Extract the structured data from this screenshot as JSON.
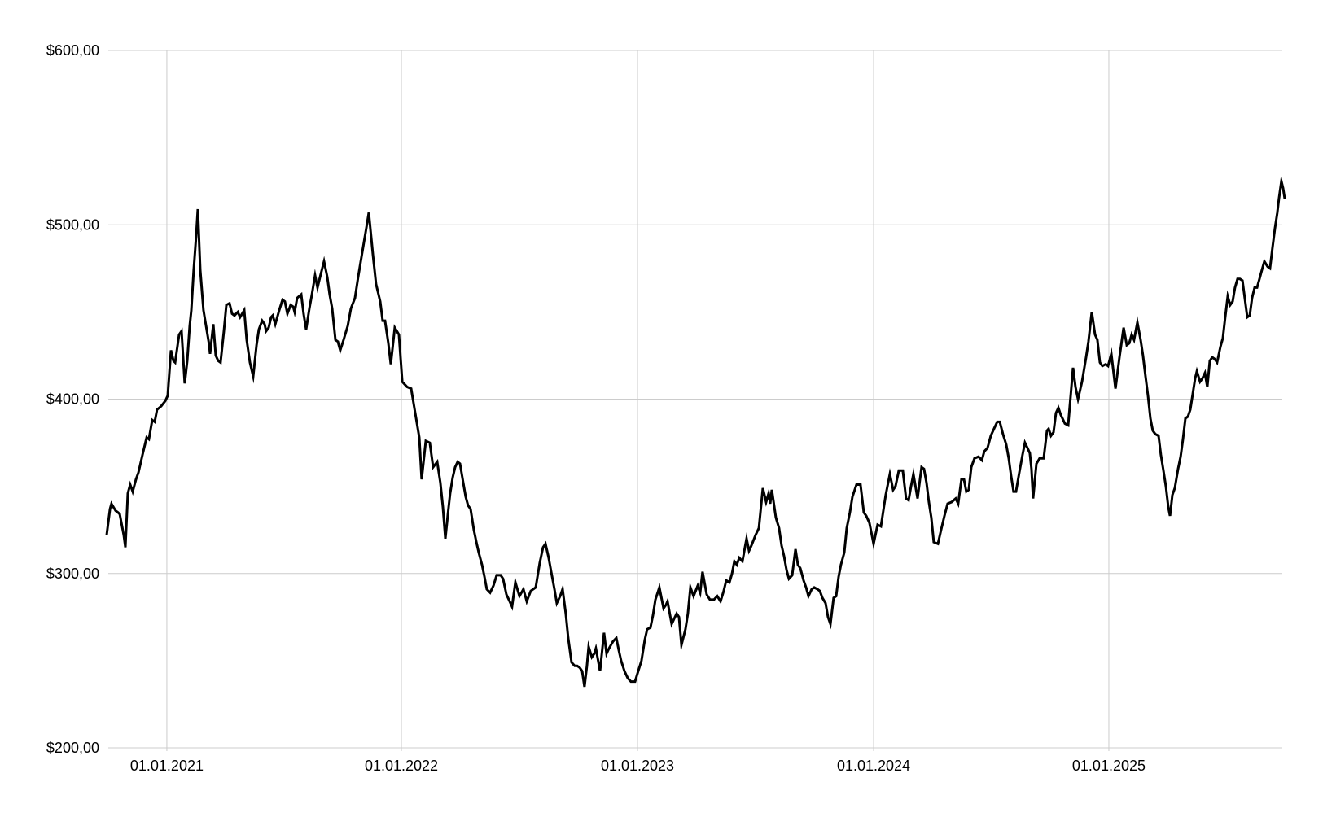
{
  "page": {
    "background": "#ffffff"
  },
  "chart_data": {
    "type": "line",
    "title": "",
    "series_name": "price",
    "line_color": "#000000",
    "line_width": 3,
    "grid_color": "#cccccc",
    "label_color": "#000000",
    "legend": "none",
    "grid": "on",
    "y_axis": {
      "min": 200,
      "max": 600,
      "tick_step": 100,
      "tick_values": [
        600,
        500,
        400,
        300,
        200
      ],
      "tick_labels": [
        "$600,00",
        "$500,00",
        "$400,00",
        "$300,00",
        "$200,00"
      ]
    },
    "x_axis": {
      "tick_labels": [
        "01.01.2021",
        "01.01.2022",
        "01.01.2023",
        "01.01.2024",
        "01.01.2025"
      ],
      "tick_positions": [
        0.0511,
        0.2502,
        0.4506,
        0.651,
        0.8507
      ]
    },
    "points": [
      [
        0.0,
        322
      ],
      [
        0.0028,
        337
      ],
      [
        0.0041,
        340
      ],
      [
        0.0076,
        336
      ],
      [
        0.0097,
        335
      ],
      [
        0.0111,
        334
      ],
      [
        0.0145,
        322
      ],
      [
        0.0159,
        315
      ],
      [
        0.018,
        346
      ],
      [
        0.02,
        351
      ],
      [
        0.0221,
        347
      ],
      [
        0.0249,
        354
      ],
      [
        0.027,
        358
      ],
      [
        0.0304,
        368
      ],
      [
        0.0339,
        378
      ],
      [
        0.0359,
        377
      ],
      [
        0.0387,
        388
      ],
      [
        0.0408,
        387
      ],
      [
        0.0428,
        394
      ],
      [
        0.0463,
        396
      ],
      [
        0.0498,
        399
      ],
      [
        0.0518,
        402
      ],
      [
        0.0546,
        428
      ],
      [
        0.0567,
        422
      ],
      [
        0.0581,
        421
      ],
      [
        0.0615,
        437
      ],
      [
        0.0636,
        439
      ],
      [
        0.0663,
        409
      ],
      [
        0.0684,
        422
      ],
      [
        0.0705,
        442
      ],
      [
        0.0719,
        451
      ],
      [
        0.0739,
        474
      ],
      [
        0.076,
        494
      ],
      [
        0.0774,
        509
      ],
      [
        0.0795,
        474
      ],
      [
        0.0822,
        451
      ],
      [
        0.0871,
        431
      ],
      [
        0.0878,
        426
      ],
      [
        0.0905,
        443
      ],
      [
        0.0926,
        425
      ],
      [
        0.0947,
        422
      ],
      [
        0.0967,
        421
      ],
      [
        0.0995,
        439
      ],
      [
        0.1016,
        454
      ],
      [
        0.1043,
        455
      ],
      [
        0.1064,
        449
      ],
      [
        0.1085,
        448
      ],
      [
        0.1113,
        450
      ],
      [
        0.1133,
        447
      ],
      [
        0.1168,
        451
      ],
      [
        0.1189,
        434
      ],
      [
        0.1216,
        421
      ],
      [
        0.1244,
        413
      ],
      [
        0.1272,
        431
      ],
      [
        0.1292,
        440
      ],
      [
        0.132,
        445
      ],
      [
        0.1341,
        443
      ],
      [
        0.1354,
        439
      ],
      [
        0.1375,
        441
      ],
      [
        0.1396,
        447
      ],
      [
        0.141,
        448
      ],
      [
        0.1431,
        443
      ],
      [
        0.1465,
        451
      ],
      [
        0.1493,
        457
      ],
      [
        0.1513,
        456
      ],
      [
        0.1534,
        449
      ],
      [
        0.1562,
        454
      ],
      [
        0.1583,
        453
      ],
      [
        0.1596,
        450
      ],
      [
        0.1617,
        458
      ],
      [
        0.1652,
        460
      ],
      [
        0.1672,
        449
      ],
      [
        0.1693,
        440
      ],
      [
        0.1721,
        452
      ],
      [
        0.1742,
        460
      ],
      [
        0.1769,
        471
      ],
      [
        0.179,
        464
      ],
      [
        0.1811,
        470
      ],
      [
        0.1845,
        479
      ],
      [
        0.1873,
        470
      ],
      [
        0.1893,
        460
      ],
      [
        0.1914,
        452
      ],
      [
        0.1942,
        434
      ],
      [
        0.1963,
        433
      ],
      [
        0.1983,
        428
      ],
      [
        0.2011,
        434
      ],
      [
        0.2046,
        442
      ],
      [
        0.2073,
        452
      ],
      [
        0.2108,
        458
      ],
      [
        0.2135,
        470
      ],
      [
        0.2184,
        490
      ],
      [
        0.2204,
        498
      ],
      [
        0.2225,
        507
      ],
      [
        0.226,
        483
      ],
      [
        0.2287,
        466
      ],
      [
        0.2322,
        456
      ],
      [
        0.2343,
        445
      ],
      [
        0.2363,
        445
      ],
      [
        0.2391,
        432
      ],
      [
        0.2412,
        420
      ],
      [
        0.2446,
        441
      ],
      [
        0.2481,
        437
      ],
      [
        0.2509,
        410
      ],
      [
        0.255,
        407
      ],
      [
        0.2585,
        406
      ],
      [
        0.2619,
        392
      ],
      [
        0.2654,
        378
      ],
      [
        0.2674,
        354
      ],
      [
        0.2709,
        376
      ],
      [
        0.2743,
        375
      ],
      [
        0.2771,
        361
      ],
      [
        0.2806,
        364
      ],
      [
        0.2833,
        352
      ],
      [
        0.2854,
        338
      ],
      [
        0.2875,
        320
      ],
      [
        0.2896,
        334
      ],
      [
        0.2916,
        346
      ],
      [
        0.2937,
        355
      ],
      [
        0.2958,
        361
      ],
      [
        0.2979,
        364
      ],
      [
        0.2999,
        363
      ],
      [
        0.3027,
        352
      ],
      [
        0.3048,
        344
      ],
      [
        0.3068,
        339
      ],
      [
        0.3089,
        337
      ],
      [
        0.3117,
        325
      ],
      [
        0.3138,
        318
      ],
      [
        0.3158,
        312
      ],
      [
        0.3186,
        305
      ],
      [
        0.3207,
        298
      ],
      [
        0.3227,
        291
      ],
      [
        0.3255,
        289
      ],
      [
        0.3283,
        293
      ],
      [
        0.331,
        299
      ],
      [
        0.3345,
        299
      ],
      [
        0.3365,
        297
      ],
      [
        0.3393,
        288
      ],
      [
        0.3421,
        284
      ],
      [
        0.3441,
        281
      ],
      [
        0.3469,
        295
      ],
      [
        0.3504,
        287
      ],
      [
        0.3538,
        291
      ],
      [
        0.3566,
        284
      ],
      [
        0.36,
        290
      ],
      [
        0.3642,
        292
      ],
      [
        0.3676,
        306
      ],
      [
        0.3704,
        315
      ],
      [
        0.3725,
        317
      ],
      [
        0.3752,
        309
      ],
      [
        0.3773,
        301
      ],
      [
        0.3801,
        291
      ],
      [
        0.3821,
        283
      ],
      [
        0.3849,
        287
      ],
      [
        0.387,
        291
      ],
      [
        0.3897,
        277
      ],
      [
        0.3918,
        263
      ],
      [
        0.3946,
        249
      ],
      [
        0.3973,
        247
      ],
      [
        0.3994,
        247
      ],
      [
        0.4015,
        246
      ],
      [
        0.4036,
        244
      ],
      [
        0.4056,
        235
      ],
      [
        0.4077,
        247
      ],
      [
        0.4091,
        258
      ],
      [
        0.4118,
        252
      ],
      [
        0.4139,
        254
      ],
      [
        0.4153,
        257
      ],
      [
        0.4188,
        244
      ],
      [
        0.4222,
        266
      ],
      [
        0.4243,
        254
      ],
      [
        0.4264,
        257
      ],
      [
        0.4298,
        261
      ],
      [
        0.4326,
        263
      ],
      [
        0.4347,
        256
      ],
      [
        0.4367,
        250
      ],
      [
        0.4395,
        244
      ],
      [
        0.4423,
        240
      ],
      [
        0.445,
        238
      ],
      [
        0.4485,
        238
      ],
      [
        0.4512,
        244
      ],
      [
        0.454,
        250
      ],
      [
        0.4568,
        262
      ],
      [
        0.4588,
        268
      ],
      [
        0.4616,
        269
      ],
      [
        0.4637,
        276
      ],
      [
        0.4658,
        285
      ],
      [
        0.4692,
        292
      ],
      [
        0.4727,
        280
      ],
      [
        0.4748,
        282
      ],
      [
        0.4761,
        284
      ],
      [
        0.4796,
        271
      ],
      [
        0.4817,
        274
      ],
      [
        0.4838,
        277
      ],
      [
        0.4858,
        275
      ],
      [
        0.4879,
        259
      ],
      [
        0.4913,
        268
      ],
      [
        0.4934,
        277
      ],
      [
        0.4955,
        292
      ],
      [
        0.4982,
        287
      ],
      [
        0.5017,
        293
      ],
      [
        0.5038,
        289
      ],
      [
        0.5058,
        301
      ],
      [
        0.5093,
        288
      ],
      [
        0.5121,
        285
      ],
      [
        0.5155,
        285
      ],
      [
        0.5183,
        287
      ],
      [
        0.5211,
        284
      ],
      [
        0.5238,
        290
      ],
      [
        0.5259,
        296
      ],
      [
        0.5287,
        295
      ],
      [
        0.5308,
        300
      ],
      [
        0.5328,
        307
      ],
      [
        0.5349,
        305
      ],
      [
        0.537,
        309
      ],
      [
        0.5397,
        307
      ],
      [
        0.5418,
        315
      ],
      [
        0.5432,
        320
      ],
      [
        0.5453,
        313
      ],
      [
        0.5473,
        316
      ],
      [
        0.5508,
        322
      ],
      [
        0.5536,
        326
      ],
      [
        0.557,
        349
      ],
      [
        0.5598,
        341
      ],
      [
        0.5619,
        346
      ],
      [
        0.5632,
        340
      ],
      [
        0.5646,
        348
      ],
      [
        0.5681,
        332
      ],
      [
        0.5708,
        326
      ],
      [
        0.5729,
        316
      ],
      [
        0.575,
        310
      ],
      [
        0.5771,
        302
      ],
      [
        0.5791,
        297
      ],
      [
        0.5819,
        299
      ],
      [
        0.5847,
        314
      ],
      [
        0.5867,
        305
      ],
      [
        0.5888,
        303
      ],
      [
        0.5916,
        296
      ],
      [
        0.5937,
        292
      ],
      [
        0.5957,
        287
      ],
      [
        0.5985,
        291
      ],
      [
        0.6006,
        292
      ],
      [
        0.6033,
        291
      ],
      [
        0.6054,
        290
      ],
      [
        0.6075,
        286
      ],
      [
        0.6102,
        283
      ],
      [
        0.6123,
        275
      ],
      [
        0.6144,
        271
      ],
      [
        0.6171,
        286
      ],
      [
        0.6192,
        287
      ],
      [
        0.6213,
        298
      ],
      [
        0.6233,
        305
      ],
      [
        0.6261,
        312
      ],
      [
        0.6282,
        326
      ],
      [
        0.6309,
        335
      ],
      [
        0.633,
        344
      ],
      [
        0.6365,
        351
      ],
      [
        0.6399,
        351
      ],
      [
        0.6427,
        335
      ],
      [
        0.6448,
        333
      ],
      [
        0.6475,
        329
      ],
      [
        0.651,
        317
      ],
      [
        0.6544,
        328
      ],
      [
        0.6572,
        327
      ],
      [
        0.6613,
        345
      ],
      [
        0.6648,
        357
      ],
      [
        0.6676,
        348
      ],
      [
        0.6696,
        350
      ],
      [
        0.6724,
        359
      ],
      [
        0.6758,
        359
      ],
      [
        0.6786,
        343
      ],
      [
        0.6807,
        342
      ],
      [
        0.6828,
        350
      ],
      [
        0.6848,
        357
      ],
      [
        0.6883,
        343
      ],
      [
        0.6917,
        361
      ],
      [
        0.6938,
        360
      ],
      [
        0.6959,
        352
      ],
      [
        0.6979,
        341
      ],
      [
        0.7,
        332
      ],
      [
        0.7021,
        318
      ],
      [
        0.7056,
        317
      ],
      [
        0.7083,
        325
      ],
      [
        0.7111,
        333
      ],
      [
        0.7138,
        340
      ],
      [
        0.7173,
        341
      ],
      [
        0.7207,
        343
      ],
      [
        0.7228,
        340
      ],
      [
        0.7256,
        354
      ],
      [
        0.7277,
        354
      ],
      [
        0.7297,
        347
      ],
      [
        0.7318,
        348
      ],
      [
        0.7339,
        361
      ],
      [
        0.7366,
        366
      ],
      [
        0.7401,
        367
      ],
      [
        0.7429,
        365
      ],
      [
        0.7449,
        370
      ],
      [
        0.7477,
        372
      ],
      [
        0.7505,
        379
      ],
      [
        0.7532,
        383
      ],
      [
        0.756,
        387
      ],
      [
        0.7581,
        387
      ],
      [
        0.7608,
        380
      ],
      [
        0.7636,
        374
      ],
      [
        0.7657,
        366
      ],
      [
        0.7677,
        356
      ],
      [
        0.7698,
        347
      ],
      [
        0.7719,
        347
      ],
      [
        0.7747,
        358
      ],
      [
        0.7774,
        368
      ],
      [
        0.7795,
        375
      ],
      [
        0.7816,
        372
      ],
      [
        0.7836,
        369
      ],
      [
        0.785,
        360
      ],
      [
        0.7864,
        343
      ],
      [
        0.7892,
        363
      ],
      [
        0.7919,
        366
      ],
      [
        0.7954,
        366
      ],
      [
        0.7982,
        382
      ],
      [
        0.7996,
        383
      ],
      [
        0.8016,
        379
      ],
      [
        0.8037,
        381
      ],
      [
        0.8058,
        392
      ],
      [
        0.8079,
        395
      ],
      [
        0.8099,
        391
      ],
      [
        0.8134,
        386
      ],
      [
        0.8162,
        385
      ],
      [
        0.8203,
        418
      ],
      [
        0.8224,
        407
      ],
      [
        0.8245,
        400
      ],
      [
        0.8279,
        410
      ],
      [
        0.8314,
        424
      ],
      [
        0.8334,
        433
      ],
      [
        0.8362,
        450
      ],
      [
        0.839,
        437
      ],
      [
        0.841,
        434
      ],
      [
        0.8431,
        421
      ],
      [
        0.8452,
        419
      ],
      [
        0.848,
        420
      ],
      [
        0.85,
        419
      ],
      [
        0.8528,
        426
      ],
      [
        0.8563,
        406
      ],
      [
        0.8597,
        424
      ],
      [
        0.8632,
        441
      ],
      [
        0.8659,
        431
      ],
      [
        0.868,
        432
      ],
      [
        0.8701,
        437
      ],
      [
        0.8721,
        434
      ],
      [
        0.8749,
        444
      ],
      [
        0.8777,
        434
      ],
      [
        0.8797,
        425
      ],
      [
        0.8818,
        413
      ],
      [
        0.8839,
        402
      ],
      [
        0.886,
        389
      ],
      [
        0.888,
        382
      ],
      [
        0.8901,
        380
      ],
      [
        0.8929,
        379
      ],
      [
        0.8949,
        368
      ],
      [
        0.897,
        359
      ],
      [
        0.8991,
        350
      ],
      [
        0.9012,
        338
      ],
      [
        0.9026,
        333
      ],
      [
        0.9046,
        345
      ],
      [
        0.9067,
        349
      ],
      [
        0.9095,
        360
      ],
      [
        0.9116,
        367
      ],
      [
        0.9136,
        377
      ],
      [
        0.9157,
        389
      ],
      [
        0.9178,
        390
      ],
      [
        0.9198,
        394
      ],
      [
        0.9219,
        403
      ],
      [
        0.924,
        412
      ],
      [
        0.9254,
        416
      ],
      [
        0.9281,
        410
      ],
      [
        0.9302,
        412
      ],
      [
        0.9323,
        415
      ],
      [
        0.9343,
        407
      ],
      [
        0.9364,
        422
      ],
      [
        0.9385,
        424
      ],
      [
        0.9406,
        423
      ],
      [
        0.9426,
        421
      ],
      [
        0.9454,
        430
      ],
      [
        0.9475,
        435
      ],
      [
        0.9495,
        447
      ],
      [
        0.9516,
        459
      ],
      [
        0.9537,
        454
      ],
      [
        0.9558,
        456
      ],
      [
        0.9578,
        464
      ],
      [
        0.9599,
        469
      ],
      [
        0.962,
        469
      ],
      [
        0.9641,
        468
      ],
      [
        0.9661,
        458
      ],
      [
        0.9682,
        447
      ],
      [
        0.9703,
        448
      ],
      [
        0.9723,
        458
      ],
      [
        0.9744,
        464
      ],
      [
        0.9765,
        464
      ],
      [
        0.9786,
        469
      ],
      [
        0.9806,
        474
      ],
      [
        0.9827,
        479
      ],
      [
        0.9855,
        476
      ],
      [
        0.9875,
        475
      ],
      [
        0.9896,
        487
      ],
      [
        0.9917,
        498
      ],
      [
        0.9937,
        507
      ],
      [
        0.9951,
        515
      ],
      [
        0.9972,
        525
      ],
      [
        0.9986,
        521
      ],
      [
        1.0,
        515
      ]
    ]
  }
}
